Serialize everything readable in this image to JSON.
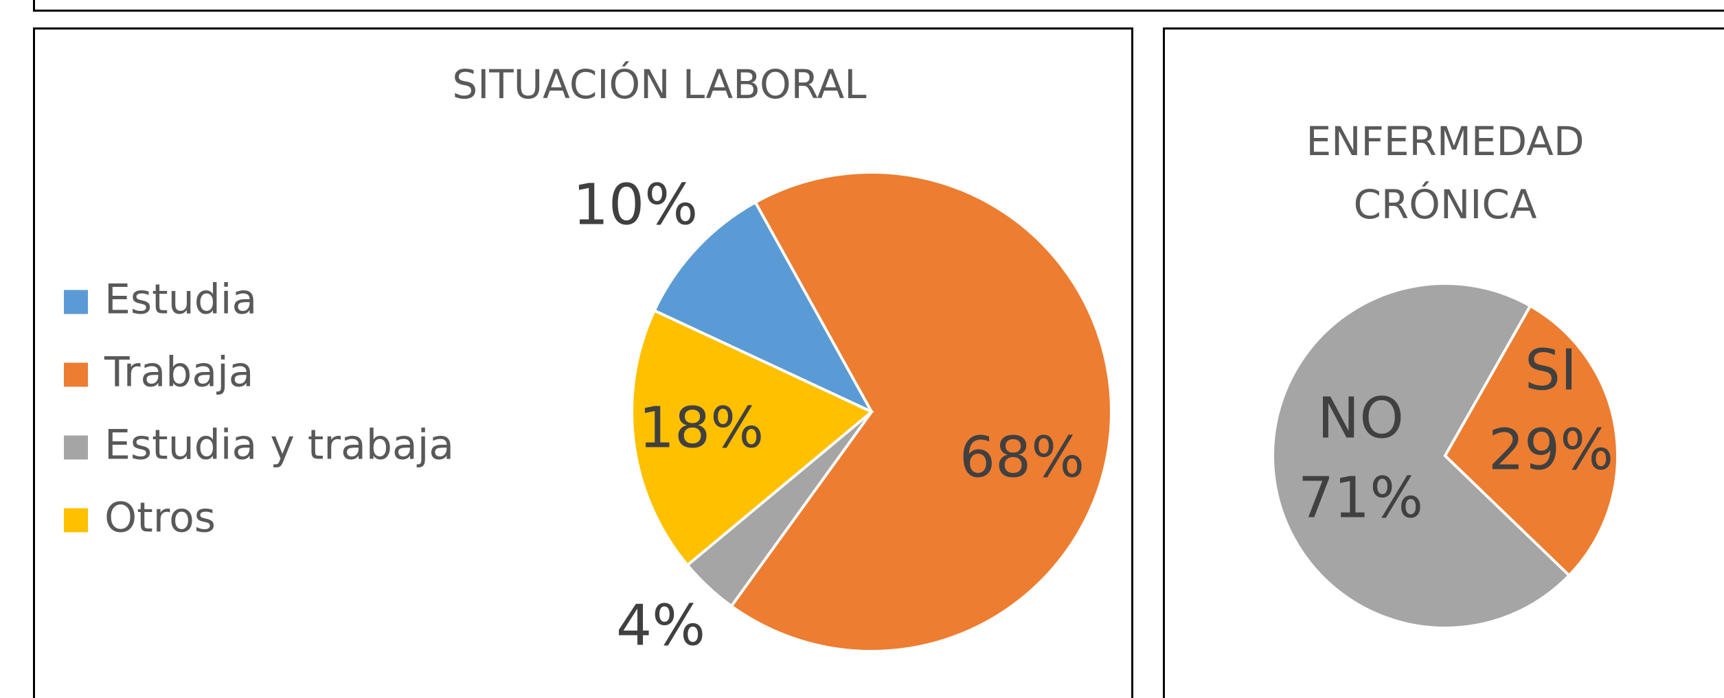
{
  "chart_data": [
    {
      "type": "pie",
      "title": "SITUACIÓN LABORAL",
      "categories": [
        "Estudia",
        "Trabaja",
        "Estudia y trabaja",
        "Otros"
      ],
      "values": [
        10,
        68,
        4,
        18
      ],
      "value_labels": [
        "10%",
        "68%",
        "4%",
        "18%"
      ],
      "colors": [
        "#5b9bd5",
        "#ed7d31",
        "#a5a5a5",
        "#ffc000"
      ],
      "start_angle": 295,
      "legend": "left"
    },
    {
      "type": "pie",
      "title": "ENFERMEDAD CRÓNICA",
      "categories": [
        "NO",
        "SI"
      ],
      "values": [
        71,
        29
      ],
      "value_labels": [
        "71%",
        "29%"
      ],
      "colors": [
        "#a5a5a5",
        "#ed7d31"
      ],
      "start_angle": 134,
      "legend": "none"
    }
  ]
}
